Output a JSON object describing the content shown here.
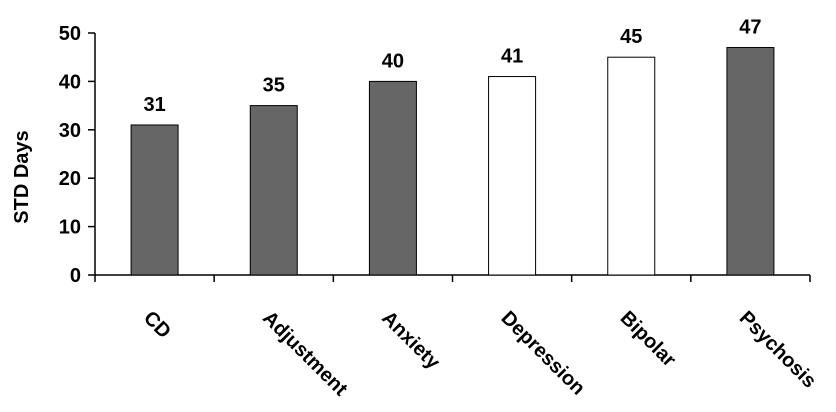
{
  "chart_data": {
    "type": "bar",
    "title": "",
    "xlabel": "",
    "ylabel": "STD Days",
    "ylim": [
      0,
      50
    ],
    "yticks": [
      0,
      10,
      20,
      30,
      40,
      50
    ],
    "grid": false,
    "legend": "none",
    "categories": [
      "CD",
      "Adjustment",
      "Anxiety",
      "Depression",
      "Bipolar",
      "Psychosis"
    ],
    "values": [
      31,
      35,
      40,
      41,
      45,
      47
    ],
    "data_labels": [
      "31",
      "35",
      "40",
      "41",
      "45",
      "47"
    ],
    "bar_fill_colors": [
      "#666666",
      "#666666",
      "#666666",
      "#ffffff",
      "#ffffff",
      "#666666"
    ],
    "bar_edge_color": "#000000"
  }
}
